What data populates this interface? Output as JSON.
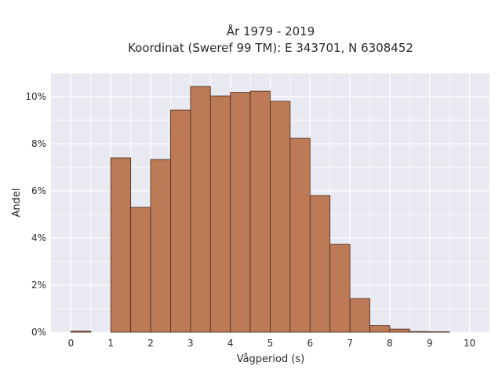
{
  "chart_data": {
    "type": "bar",
    "title_line1": "År 1979 - 2019",
    "title_line2": "Koordinat (Sweref 99 TM): E 343701, N 6308452",
    "xlabel": "Vågperiod (s)",
    "ylabel": "Andel",
    "bin_width": 0.5,
    "bin_starts": [
      0,
      0.5,
      1,
      1.5,
      2,
      2.5,
      3,
      3.5,
      4,
      4.5,
      5,
      5.5,
      6,
      6.5,
      7,
      7.5,
      8,
      8.5,
      9,
      9.5
    ],
    "values": [
      0.0005,
      0,
      0.074,
      0.053,
      0.0733,
      0.0943,
      0.1043,
      0.1003,
      0.1018,
      0.1023,
      0.098,
      0.0823,
      0.058,
      0.0373,
      0.0143,
      0.0028,
      0.0013,
      0.0003,
      0.0002,
      0
    ],
    "xlim": [
      -0.5,
      10.5
    ],
    "ylim": [
      0,
      0.11
    ],
    "xticks": [
      "0",
      "1",
      "2",
      "3",
      "4",
      "5",
      "6",
      "7",
      "8",
      "9",
      "10"
    ],
    "yticks": [
      "0%",
      "2%",
      "4%",
      "6%",
      "8%",
      "10%"
    ],
    "bar_color": "#bc7a56",
    "bar_edge_color": "#4a2a1a",
    "plot_bg": "#e9e9f2",
    "grid": true
  }
}
